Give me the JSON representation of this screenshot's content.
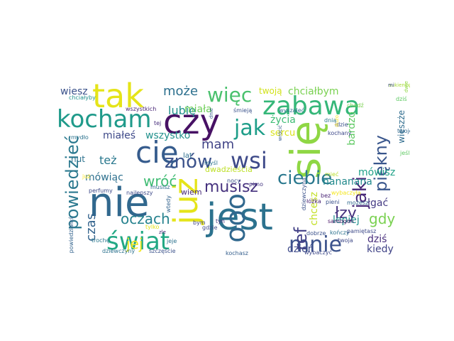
{
  "words": [
    {
      "text": "się",
      "color": "#8fd744"
    },
    {
      "text": "nie",
      "color": "#31688e"
    },
    {
      "text": "jest",
      "color": "#2c728e"
    },
    {
      "text": "tak",
      "color": "#e5e419"
    },
    {
      "text": "czy",
      "color": "#471164"
    },
    {
      "text": "już",
      "color": "#e5e419"
    },
    {
      "text": "cię",
      "color": "#365c8d"
    },
    {
      "text": "kocham",
      "color": "#1f9a8a"
    },
    {
      "text": "zabawa",
      "color": "#35b779"
    },
    {
      "text": "ooo",
      "color": "#31688e"
    },
    {
      "text": "mnie",
      "color": "#3b528b"
    },
    {
      "text": "świat",
      "color": "#22a884"
    },
    {
      "text": "jak",
      "color": "#1f9e89"
    },
    {
      "text": "ciebie",
      "color": "#2a788e"
    },
    {
      "text": "wsi",
      "color": "#3e4a89"
    },
    {
      "text": "jaki",
      "color": "#482878"
    },
    {
      "text": "więc",
      "color": "#4ac16d"
    },
    {
      "text": "piękny",
      "color": "#39568c"
    },
    {
      "text": "powiedzieć",
      "color": "#2a788e"
    },
    {
      "text": "znów",
      "color": "#3b528b"
    },
    {
      "text": "ref",
      "color": "#424086"
    },
    {
      "text": "musisz",
      "color": "#46327e"
    },
    {
      "text": "łzy",
      "color": "#46337e"
    },
    {
      "text": "gdy",
      "color": "#7ad151"
    },
    {
      "text": "oczach",
      "color": "#26828e"
    },
    {
      "text": "może",
      "color": "#2d708e"
    },
    {
      "text": "wróć",
      "color": "#3fbc73"
    },
    {
      "text": "jej",
      "color": "#f1e51d"
    },
    {
      "text": "mam",
      "color": "#414487"
    },
    {
      "text": "czas",
      "color": "#33638d"
    },
    {
      "text": "lubię",
      "color": "#21918c"
    },
    {
      "text": "też",
      "color": "#2a788e"
    },
    {
      "text": "wiesz",
      "color": "#3b528b"
    },
    {
      "text": "chciałbym",
      "color": "#7ad151"
    },
    {
      "text": "wszystko",
      "color": "#21918c"
    },
    {
      "text": "miałeś",
      "color": "#3e4989"
    },
    {
      "text": "mówisz",
      "color": "#1fa188"
    },
    {
      "text": "lepiej",
      "color": "#21918c"
    },
    {
      "text": "nananana",
      "color": "#238a8d"
    },
    {
      "text": "twoją",
      "color": "#d2e21b"
    },
    {
      "text": "życia",
      "color": "#3dbc74"
    },
    {
      "text": "bardzo",
      "color": "#5ec962"
    },
    {
      "text": "dziś",
      "color": "#472d7b"
    },
    {
      "text": "kiedy",
      "color": "#414487"
    },
    {
      "text": "dzień",
      "color": "#3e4a89"
    },
    {
      "text": "łgać",
      "color": "#443a83"
    },
    {
      "text": "chcesz",
      "color": "#c2df23"
    },
    {
      "text": "mówiąc",
      "color": "#2d708e"
    },
    {
      "text": "miała",
      "color": "#6ece58"
    },
    {
      "text": "nut",
      "color": "#2c728e"
    },
    {
      "text": "sercu",
      "color": "#d8e219"
    },
    {
      "text": "dwadzieścia",
      "color": "#bddf26"
    },
    {
      "text": "wiem",
      "color": "#472a7a"
    },
    {
      "text": "wieszże",
      "color": "#2f6c8e"
    },
    {
      "text": "lat",
      "color": "#2e6e8e"
    },
    {
      "text": "najlepszy",
      "color": "#3e4a89"
    },
    {
      "text": "wszystkich",
      "color": "#482475"
    },
    {
      "text": "chciałyby",
      "color": "#21918c"
    },
    {
      "text": "sukienkę",
      "color": "#a5db36"
    },
    {
      "text": "mi",
      "color": "#3e4989"
    },
    {
      "text": "tej",
      "color": "#472d7b"
    },
    {
      "text": "śmieją",
      "color": "#3b528b"
    },
    {
      "text": "mydło",
      "color": "#2c728e"
    },
    {
      "text": "idzie",
      "color": "#3b528b"
    },
    {
      "text": "kochany",
      "color": "#3e4989"
    },
    {
      "text": "wyszaleć",
      "color": "#2e6f8e"
    },
    {
      "text": "wrócić",
      "color": "#365c8d"
    },
    {
      "text": "dużo",
      "color": "#fde725"
    },
    {
      "text": "nocy",
      "color": "#3b528b"
    },
    {
      "text": "perfumy",
      "color": "#3e4a89"
    },
    {
      "text": "musisz",
      "color": "#31688e"
    },
    {
      "text": "myśl",
      "color": "#2c728e"
    },
    {
      "text": "pimo",
      "color": "#453882"
    },
    {
      "text": "wybaczyła",
      "color": "#f4e61e"
    },
    {
      "text": "możesz",
      "color": "#31688e"
    },
    {
      "text": "pieni",
      "color": "#3b528b"
    },
    {
      "text": "bez",
      "color": "#482475"
    },
    {
      "text": "tyn",
      "color": "#46327e"
    },
    {
      "text": "bym",
      "color": "#404688"
    },
    {
      "text": "gdzie",
      "color": "#3e4a89"
    },
    {
      "text": "trochę",
      "color": "#2a788e"
    },
    {
      "text": "tylko",
      "color": "#e5e419"
    },
    {
      "text": "samogon",
      "color": "#471164"
    },
    {
      "text": "dobrze",
      "color": "#3b528b"
    },
    {
      "text": "kończy",
      "color": "#2c728e"
    },
    {
      "text": "pamiętasz",
      "color": "#3e4a89"
    },
    {
      "text": "twoja",
      "color": "#3e4989"
    },
    {
      "text": "szczęście",
      "color": "#3b528b"
    },
    {
      "text": "dziewczyny",
      "color": "#2c728e"
    },
    {
      "text": "kochasz",
      "color": "#355f8d"
    },
    {
      "text": "wybaczyć",
      "color": "#3e4989"
    },
    {
      "text": "łóżka",
      "color": "#482475"
    },
    {
      "text": "mieć",
      "color": "#b8de29"
    },
    {
      "text": "twojej",
      "color": "#31688e"
    },
    {
      "text": "dziewczyna",
      "color": "#3b528b"
    },
    {
      "text": "chodź",
      "color": "#7ad151"
    },
    {
      "text": "dnia",
      "color": "#2a788e"
    },
    {
      "text": "dziś",
      "color": "#5ec962"
    },
    {
      "text": "dnie",
      "color": "#365c8d"
    },
    {
      "text": "powiedziałaś",
      "color": "#33638d"
    },
    {
      "text": "jeśli",
      "color": "#5ec962"
    },
    {
      "text": "jeje",
      "color": "#2c728e"
    },
    {
      "text": "zle",
      "color": "#482878"
    },
    {
      "text": "wtedy",
      "color": "#33638d"
    },
    {
      "text": "już",
      "color": "#fde725"
    },
    {
      "text": "dwie",
      "color": "#8fd744"
    }
  ]
}
